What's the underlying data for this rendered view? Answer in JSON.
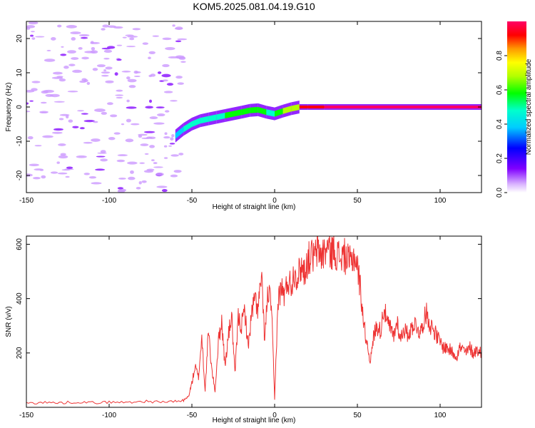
{
  "title": "KOM5.2025.081.04.19.G10",
  "chart_data": [
    {
      "type": "heatmap",
      "xlabel": "Height of straight line (km)",
      "ylabel": "Frequency (Hz)",
      "xlim": [
        -150,
        125
      ],
      "ylim": [
        -25,
        25
      ],
      "xticks": [
        -150,
        -100,
        -50,
        0,
        50,
        100
      ],
      "yticks": [
        -20,
        -10,
        0,
        10,
        20
      ],
      "colorbar": {
        "label": "Normalized spectral amplitude",
        "range": [
          0,
          1
        ],
        "ticks": [
          0.0,
          0.2,
          0.4,
          0.6,
          0.8
        ],
        "tick_labels": [
          "0.0",
          "0.2",
          "0.4",
          "0.6",
          "0.8"
        ],
        "colors": [
          "#ffffff",
          "#cc99ff",
          "#8000ff",
          "#0000ff",
          "#00ffff",
          "#00ff00",
          "#ffff00",
          "#ff8000",
          "#ff0000",
          "#ff0066"
        ]
      },
      "signal_track": [
        {
          "x": -60,
          "f": -8.5,
          "amp": 0.3
        },
        {
          "x": -55,
          "f": -6.5,
          "amp": 0.4
        },
        {
          "x": -50,
          "f": -5.0,
          "amp": 0.45
        },
        {
          "x": -45,
          "f": -4.0,
          "amp": 0.45
        },
        {
          "x": -40,
          "f": -3.5,
          "amp": 0.4
        },
        {
          "x": -35,
          "f": -3.0,
          "amp": 0.45
        },
        {
          "x": -30,
          "f": -2.5,
          "amp": 0.5
        },
        {
          "x": -25,
          "f": -2.0,
          "amp": 0.5
        },
        {
          "x": -20,
          "f": -1.5,
          "amp": 0.5
        },
        {
          "x": -15,
          "f": -1.0,
          "amp": 0.55
        },
        {
          "x": -10,
          "f": -0.8,
          "amp": 0.5
        },
        {
          "x": -5,
          "f": -1.5,
          "amp": 0.45
        },
        {
          "x": 0,
          "f": -2.0,
          "amp": 0.5
        },
        {
          "x": 5,
          "f": -1.2,
          "amp": 0.6
        },
        {
          "x": 10,
          "f": -0.5,
          "amp": 0.65
        },
        {
          "x": 15,
          "f": 0.0,
          "amp": 0.85
        },
        {
          "x": 20,
          "f": 0.0,
          "amp": 0.9
        },
        {
          "x": 30,
          "f": 0.0,
          "amp": 0.95
        },
        {
          "x": 50,
          "f": 0.0,
          "amp": 0.95
        },
        {
          "x": 75,
          "f": 0.0,
          "amp": 0.95
        },
        {
          "x": 100,
          "f": 0.0,
          "amp": 0.95
        },
        {
          "x": 125,
          "f": 0.0,
          "amp": 0.95
        }
      ],
      "noise_region_xlim": [
        -150,
        -55
      ]
    },
    {
      "type": "line",
      "xlabel": "Height of straight line (km)",
      "ylabel": "SNR (v/v)",
      "xlim": [
        -150,
        125
      ],
      "ylim": [
        0,
        630
      ],
      "xticks": [
        -150,
        -100,
        -50,
        0,
        50,
        100
      ],
      "yticks": [
        200,
        400,
        600
      ],
      "color": "#ee3333",
      "x": [
        -150,
        -140,
        -130,
        -120,
        -110,
        -100,
        -90,
        -80,
        -70,
        -60,
        -55,
        -52,
        -50,
        -48,
        -46,
        -44,
        -42,
        -40,
        -38,
        -36,
        -34,
        -32,
        -30,
        -28,
        -26,
        -24,
        -22,
        -20,
        -18,
        -16,
        -14,
        -12,
        -10,
        -8,
        -6,
        -4,
        -2,
        0,
        2,
        4,
        6,
        8,
        10,
        12,
        14,
        16,
        18,
        20,
        22,
        24,
        26,
        28,
        30,
        32,
        34,
        36,
        38,
        40,
        42,
        44,
        46,
        48,
        50,
        52,
        54,
        56,
        58,
        60,
        62,
        64,
        66,
        68,
        70,
        72,
        74,
        76,
        78,
        80,
        82,
        84,
        86,
        88,
        90,
        92,
        94,
        96,
        98,
        100,
        102,
        104,
        106,
        108,
        110,
        112,
        114,
        116,
        118,
        120,
        122,
        125
      ],
      "y": [
        15,
        18,
        16,
        20,
        17,
        19,
        18,
        22,
        20,
        21,
        25,
        40,
        90,
        150,
        110,
        260,
        60,
        280,
        140,
        60,
        240,
        320,
        150,
        260,
        340,
        120,
        330,
        300,
        360,
        220,
        340,
        400,
        360,
        480,
        250,
        430,
        380,
        30,
        390,
        440,
        410,
        470,
        450,
        500,
        480,
        520,
        500,
        540,
        560,
        550,
        580,
        560,
        570,
        590,
        570,
        580,
        560,
        550,
        560,
        540,
        530,
        560,
        520,
        430,
        300,
        230,
        170,
        270,
        300,
        280,
        370,
        310,
        290,
        260,
        320,
        250,
        290,
        270,
        280,
        310,
        300,
        270,
        320,
        350,
        300,
        290,
        260,
        240,
        220,
        220,
        210,
        200,
        190,
        220,
        210,
        200,
        220,
        200,
        210,
        205
      ]
    }
  ]
}
